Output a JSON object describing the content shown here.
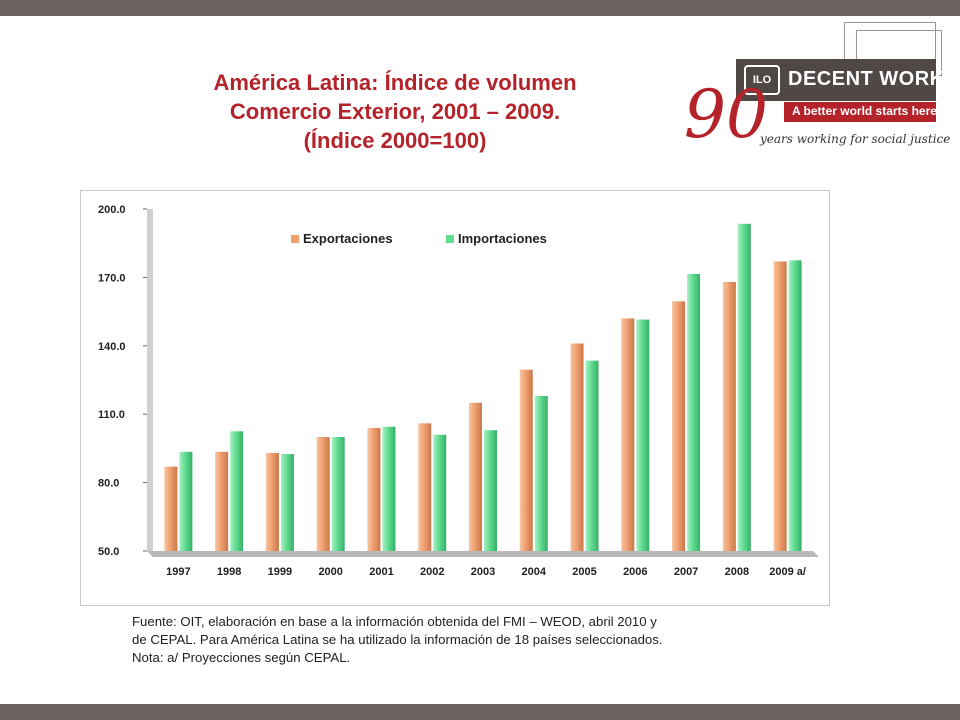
{
  "slide": {
    "title_line1": "América Latina: Índice de volumen",
    "title_line2": "Comercio Exterior, 2001 – 2009.",
    "title_line3": "(Índice 2000=100)",
    "title_color": "#b5232a",
    "frame_color": "#6b635f"
  },
  "logo": {
    "mark": "ILO",
    "name": "DECENT WORK",
    "tagline": "A better world starts here",
    "ninety": "90",
    "script": "years working for social justice"
  },
  "chart_data": {
    "type": "bar",
    "categories": [
      "1997",
      "1998",
      "1999",
      "2000",
      "2001",
      "2002",
      "2003",
      "2004",
      "2005",
      "2006",
      "2007",
      "2008",
      "2009 a/"
    ],
    "series": [
      {
        "name": "Exportaciones",
        "color": "#f0a070",
        "values": [
          87,
          93.5,
          93,
          100,
          104,
          106,
          115,
          129.5,
          141,
          152,
          159.5,
          168,
          177
        ]
      },
      {
        "name": "Importaciones",
        "color": "#5fdc90",
        "values": [
          93.5,
          102.5,
          92.5,
          100,
          104.5,
          101,
          103,
          118,
          133.5,
          151.5,
          171.5,
          193.5,
          177.5
        ]
      }
    ],
    "ylim": [
      50,
      200
    ],
    "yticks": [
      "50.0",
      "80.0",
      "110.0",
      "140.0",
      "170.0",
      "200.0"
    ],
    "legend_position": "top-center",
    "grid": false
  },
  "footer": {
    "line1": "Fuente: OIT,  elaboración en base a la información obtenida del  FMI – WEOD, abril 2010 y",
    "line2": "de CEPAL. Para América Latina se ha utilizado la información de 18 países seleccionados.",
    "line3": "Nota: a/ Proyecciones según CEPAL."
  }
}
